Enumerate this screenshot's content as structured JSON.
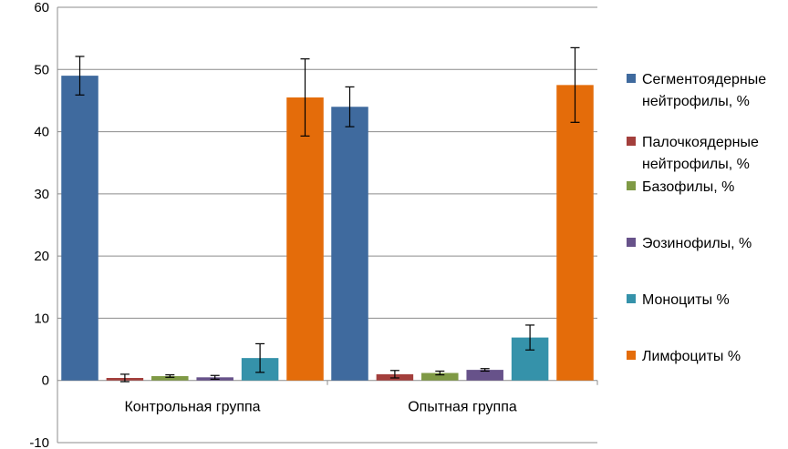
{
  "chart_data": {
    "type": "bar",
    "categories": [
      "Контрольная группа",
      "Опытная группа"
    ],
    "ylim": [
      -10,
      60
    ],
    "yticks": [
      -10,
      0,
      10,
      20,
      30,
      40,
      50,
      60
    ],
    "grid": true,
    "legend_position": "right",
    "series": [
      {
        "name": "Сегментоядерные нейтрофилы, %",
        "label_lines": [
          "Сегментоядерные",
          "нейтрофилы, %"
        ],
        "color": "#3F6A9E",
        "values": [
          49,
          44
        ],
        "errors": [
          3.1,
          3.2
        ]
      },
      {
        "name": "Палочкоядерные нейтрофилы, %",
        "label_lines": [
          "Палочкоядерные",
          "нейтрофилы, %"
        ],
        "color": "#A33F3C",
        "values": [
          0.4,
          1.0
        ],
        "errors": [
          0.6,
          0.6
        ]
      },
      {
        "name": "Базофилы, %",
        "label_lines": [
          "Базофилы, %"
        ],
        "color": "#7F9A45",
        "values": [
          0.7,
          1.2
        ],
        "errors": [
          0.2,
          0.3
        ]
      },
      {
        "name": "Эозинофилы, %",
        "label_lines": [
          "Эозинофилы, %"
        ],
        "color": "#67528A",
        "values": [
          0.5,
          1.7
        ],
        "errors": [
          0.3,
          0.2
        ]
      },
      {
        "name": "Моноциты %",
        "label_lines": [
          "Моноциты %"
        ],
        "color": "#3592AA",
        "values": [
          3.6,
          6.9
        ],
        "errors": [
          2.3,
          2.0
        ]
      },
      {
        "name": "Лимфоциты %",
        "label_lines": [
          "Лимфоциты %"
        ],
        "color": "#E46C0A",
        "values": [
          45.5,
          47.5
        ],
        "errors": [
          6.2,
          6.0
        ]
      }
    ]
  }
}
